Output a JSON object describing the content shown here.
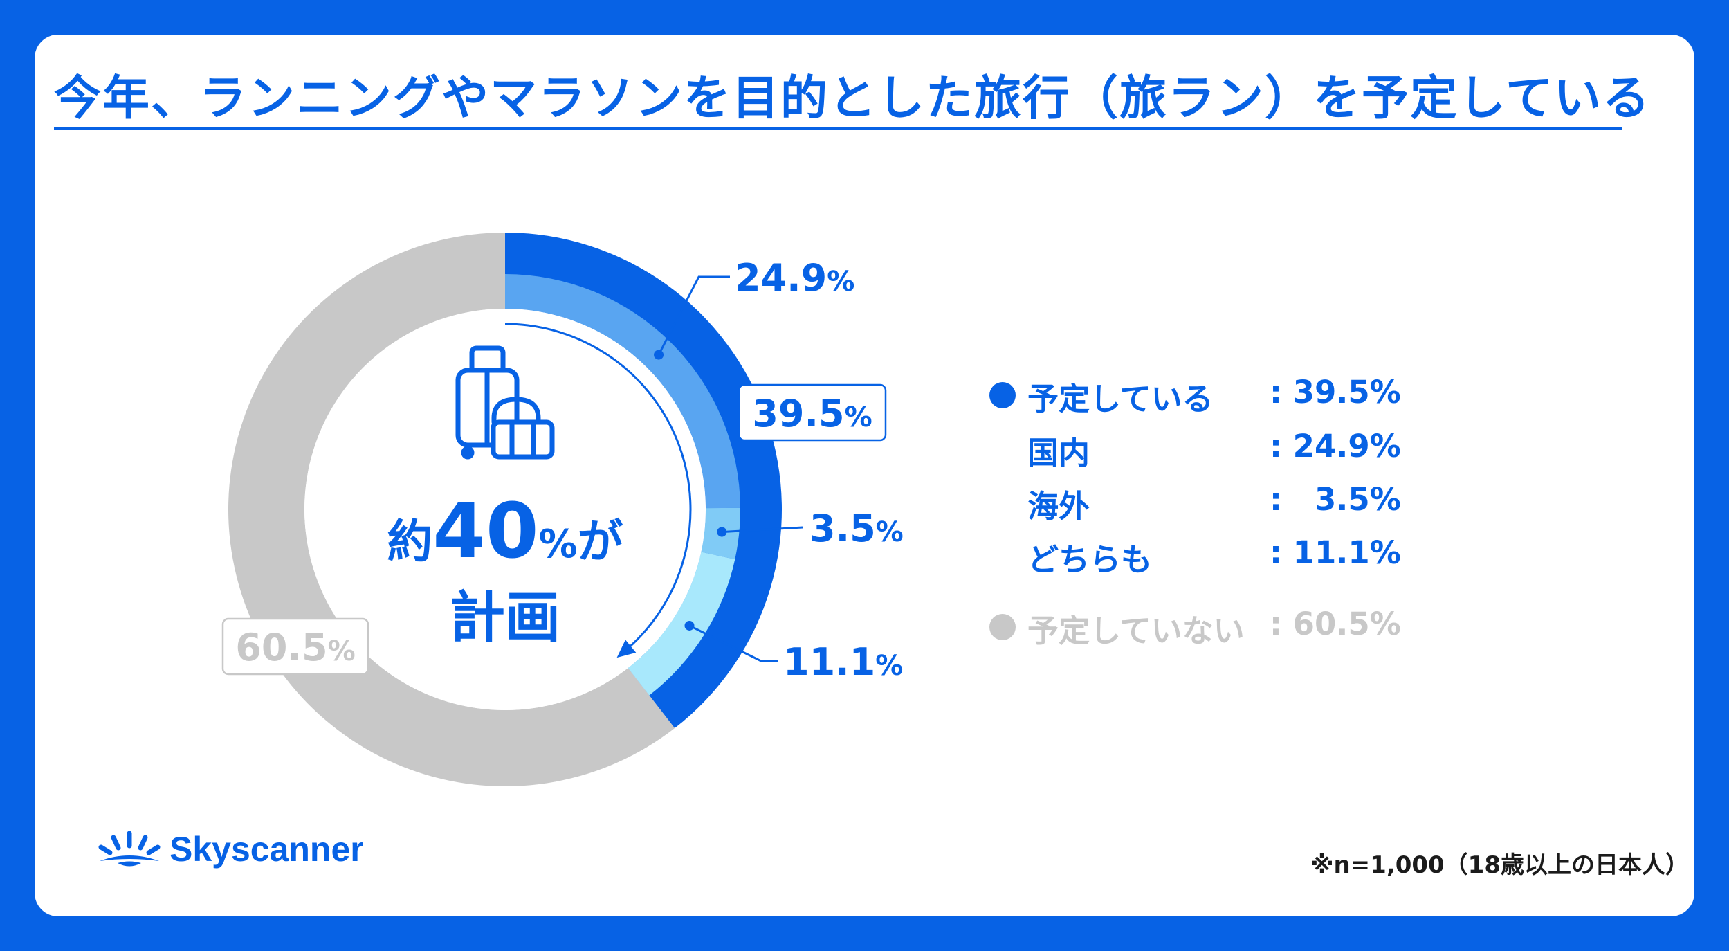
{
  "title": "今年、ランニングやマラソンを目的とした旅行（旅ラン）を予定している",
  "center": {
    "line1_prefix": "約",
    "line1_number": "40",
    "line1_pct": "%",
    "line1_suffix": "が",
    "line2": "計画",
    "icon": "luggage-icon"
  },
  "colors": {
    "brand": "#0762e5",
    "domestic": "#59a5f1",
    "overseas": "#80cbf6",
    "both": "#a8e8fc",
    "not_planning": "#c8c8c8",
    "bg": "#ffffff"
  },
  "chart_data": {
    "type": "pie",
    "style": "donut",
    "outer_ring": [
      {
        "name": "予定している",
        "value": 39.5,
        "label": "39.5",
        "unit": "%"
      },
      {
        "name": "予定していない",
        "value": 60.5,
        "label": "60.5",
        "unit": "%"
      }
    ],
    "inner_breakdown": [
      {
        "name": "国内",
        "value": 24.9,
        "label": "24.9",
        "unit": "%"
      },
      {
        "name": "海外",
        "value": 3.5,
        "label": "3.5",
        "unit": "%"
      },
      {
        "name": "どちらも",
        "value": 11.1,
        "label": "11.1",
        "unit": "%"
      }
    ]
  },
  "legend": [
    {
      "label": "予定している",
      "value": ": 39.5%",
      "dot": true,
      "muted": false
    },
    {
      "label": "国内",
      "value": ": 24.9%",
      "dot": false,
      "muted": false
    },
    {
      "label": "海外",
      "value": ":   3.5%",
      "dot": false,
      "muted": false
    },
    {
      "label": "どちらも",
      "value": ": 11.1%",
      "dot": false,
      "muted": false
    },
    {
      "label": "予定していない",
      "value": ": 60.5%",
      "dot": true,
      "muted": true
    }
  ],
  "brand": {
    "name": "Skyscanner",
    "logo_icon": "sunrise-logo-icon"
  },
  "footnote": "※n=1,000（18歳以上の日本人）"
}
